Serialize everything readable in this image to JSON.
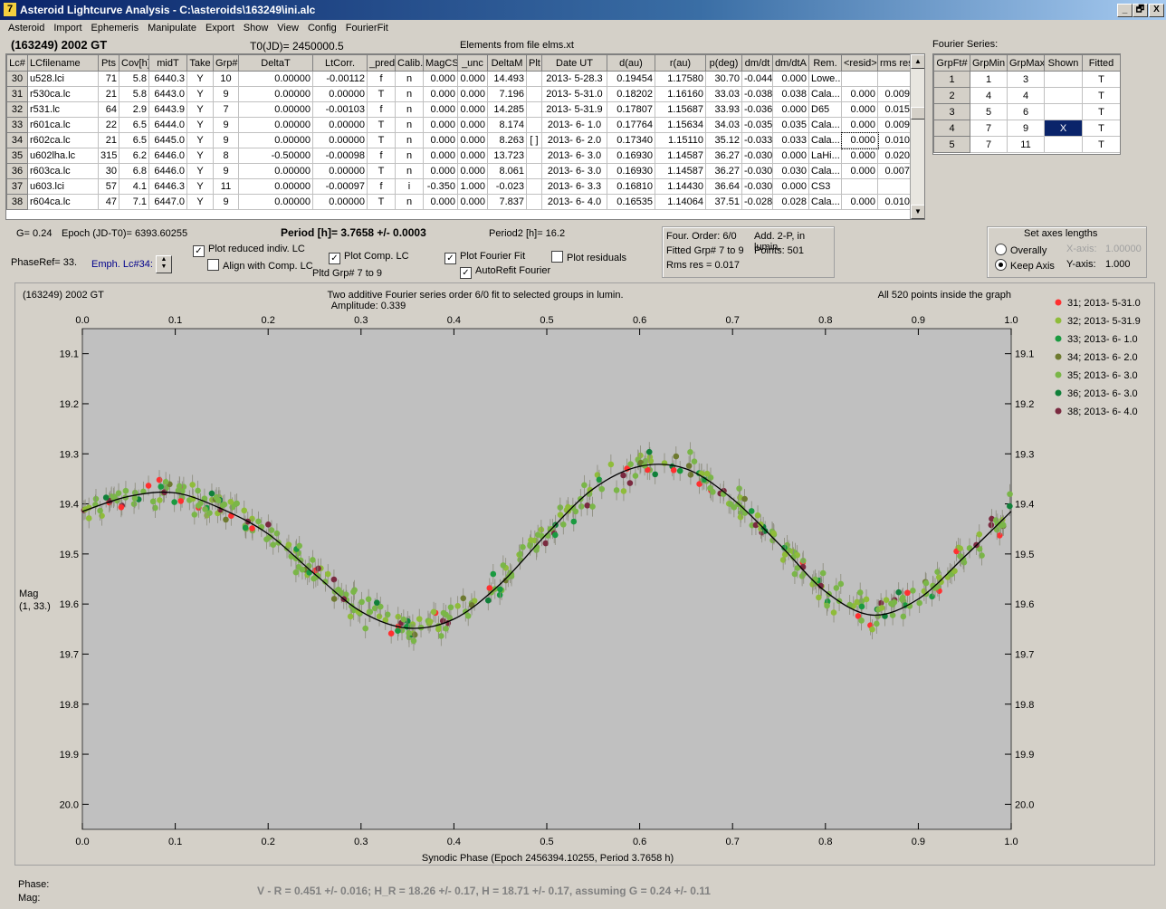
{
  "window": {
    "title": "Asteroid Lightcurve Analysis - C:\\asteroids\\163249\\ini.alc",
    "app_icon": "7",
    "controls": [
      "_",
      "🗗",
      "X"
    ]
  },
  "menu": [
    "Asteroid",
    "Import",
    "Ephemeris",
    "Manipulate",
    "Export",
    "Show",
    "View",
    "Config",
    "FourierFit"
  ],
  "header": {
    "asteroid": "(163249) 2002 GT",
    "t0": "T0(JD)= 2450000.5",
    "elements": "Elements from file elms.xt",
    "fourier_series_label": "Fourier Series:"
  },
  "lc_table": {
    "columns": [
      "Lc#",
      "LCfilename",
      "Pts",
      "Cov[h]",
      "midT",
      "Take",
      "Grp#",
      "DeltaT",
      "LtCorr.",
      "_pred.",
      "Calib.",
      "MagCS",
      "_unc",
      "DeltaM",
      "Plt",
      "Date UT",
      "d(au)",
      "r(au)",
      "p(deg)",
      "dm/dt",
      "dm/dtA",
      "Rem.",
      "<resid>",
      "rms res"
    ],
    "rows": [
      [
        "30",
        "u528.lci",
        "71",
        "5.8",
        "6440.3",
        "Y",
        "10",
        "0.00000",
        "-0.00112",
        "f",
        "n",
        "0.000",
        "0.000",
        "14.493",
        "",
        "2013- 5-28.3",
        "0.19454",
        "1.17580",
        "30.70",
        "-0.044",
        "0.000",
        "Lowe...",
        "",
        ""
      ],
      [
        "31",
        "r530ca.lc",
        "21",
        "5.8",
        "6443.0",
        "Y",
        "9",
        "0.00000",
        "0.00000",
        "T",
        "n",
        "0.000",
        "0.000",
        "7.196",
        "",
        "2013- 5-31.0",
        "0.18202",
        "1.16160",
        "33.03",
        "-0.038",
        "0.038",
        "Cala...",
        "0.000",
        "0.009"
      ],
      [
        "32",
        "r531.lc",
        "64",
        "2.9",
        "6443.9",
        "Y",
        "7",
        "0.00000",
        "-0.00103",
        "f",
        "n",
        "0.000",
        "0.000",
        "14.285",
        "",
        "2013- 5-31.9",
        "0.17807",
        "1.15687",
        "33.93",
        "-0.036",
        "0.000",
        "D65",
        "0.000",
        "0.015"
      ],
      [
        "33",
        "r601ca.lc",
        "22",
        "6.5",
        "6444.0",
        "Y",
        "9",
        "0.00000",
        "0.00000",
        "T",
        "n",
        "0.000",
        "0.000",
        "8.174",
        "",
        "2013- 6- 1.0",
        "0.17764",
        "1.15634",
        "34.03",
        "-0.035",
        "0.035",
        "Cala...",
        "0.000",
        "0.009"
      ],
      [
        "34",
        "r602ca.lc",
        "21",
        "6.5",
        "6445.0",
        "Y",
        "9",
        "0.00000",
        "0.00000",
        "T",
        "n",
        "0.000",
        "0.000",
        "8.263",
        "[ ]",
        "2013- 6- 2.0",
        "0.17340",
        "1.15110",
        "35.12",
        "-0.033",
        "0.033",
        "Cala...",
        "0.000",
        "0.010"
      ],
      [
        "35",
        "u602lha.lc",
        "315",
        "6.2",
        "6446.0",
        "Y",
        "8",
        "-0.50000",
        "-0.00098",
        "f",
        "n",
        "0.000",
        "0.000",
        "13.723",
        "",
        "2013- 6- 3.0",
        "0.16930",
        "1.14587",
        "36.27",
        "-0.030",
        "0.000",
        "LaHi...",
        "0.000",
        "0.020"
      ],
      [
        "36",
        "r603ca.lc",
        "30",
        "6.8",
        "6446.0",
        "Y",
        "9",
        "0.00000",
        "0.00000",
        "T",
        "n",
        "0.000",
        "0.000",
        "8.061",
        "",
        "2013- 6- 3.0",
        "0.16930",
        "1.14587",
        "36.27",
        "-0.030",
        "0.030",
        "Cala...",
        "0.000",
        "0.007"
      ],
      [
        "37",
        "u603.lci",
        "57",
        "4.1",
        "6446.3",
        "Y",
        "11",
        "0.00000",
        "-0.00097",
        "f",
        "i",
        "-0.350",
        "1.000",
        "-0.023",
        "",
        "2013- 6- 3.3",
        "0.16810",
        "1.14430",
        "36.64",
        "-0.030",
        "0.000",
        "CS3",
        "",
        ""
      ],
      [
        "38",
        "r604ca.lc",
        "47",
        "7.1",
        "6447.0",
        "Y",
        "9",
        "0.00000",
        "0.00000",
        "T",
        "n",
        "0.000",
        "0.000",
        "7.837",
        "",
        "2013- 6- 4.0",
        "0.16535",
        "1.14064",
        "37.51",
        "-0.028",
        "0.028",
        "Cala...",
        "0.000",
        "0.010"
      ]
    ]
  },
  "fourier_table": {
    "columns": [
      "GrpFt#",
      "GrpMin",
      "GrpMax",
      "Shown",
      "Fitted"
    ],
    "rows": [
      [
        "1",
        "1",
        "3",
        "",
        "T"
      ],
      [
        "2",
        "4",
        "4",
        "",
        "T"
      ],
      [
        "3",
        "5",
        "6",
        "",
        "T"
      ],
      [
        "4",
        "7",
        "9",
        "X",
        "T"
      ],
      [
        "5",
        "7",
        "11",
        "",
        "T"
      ]
    ]
  },
  "controls": {
    "g": "G= 0.24",
    "epoch": "Epoch (JD-T0)= 6393.60255",
    "period": "Period [h]= 3.7658 +/- 0.0003",
    "period2": "Period2 [h]= 16.2",
    "phaseref": "PhaseRef= 33.",
    "emph": "Emph. Lc#34:",
    "plot_reduced": "Plot reduced indiv. LC",
    "align_comp": "Align with Comp. LC",
    "plot_comp": "Plot Comp. LC",
    "plotted_grp": "Pltd Grp#  7   to   9",
    "plot_fourier": "Plot Fourier Fit",
    "autorefit": "AutoRefit Fourier",
    "plot_residuals": "Plot residuals",
    "checks": {
      "plot_reduced": true,
      "align_comp": false,
      "plot_comp": true,
      "plot_fourier": true,
      "autorefit": true,
      "plot_residuals": false
    },
    "four_order": "Four. Order:  6/0",
    "add2p": "Add. 2-P, in lumin.",
    "fitted_grp": "Fitted Grp# 7 to 9",
    "points": "Points: 501",
    "rms": "Rms res     = 0.017",
    "axes_title": "Set axes lengths",
    "overally": "Overally",
    "keep_axis": "Keep Axis",
    "xaxis_label": "X-axis:",
    "xaxis_val": "1.00000",
    "yaxis_label": "Y-axis:",
    "yaxis_val": "1.000"
  },
  "plot": {
    "left_title": "(163249) 2002 GT",
    "center_title": "Two additive Fourier series order 6/0 fit to selected groups in lumin.",
    "amplitude": "Amplitude: 0.339",
    "right_title": "All 520 points inside the graph",
    "ylabel1": "Mag",
    "ylabel2": "(1, 33.)",
    "xlabel": "Synodic Phase (Epoch 2456394.10255, Period 3.7658 h)",
    "legend": [
      {
        "label": "31; 2013- 5-31.0",
        "color": "#ff3030"
      },
      {
        "label": "32; 2013- 5-31.9",
        "color": "#8fbc3a"
      },
      {
        "label": "33; 2013- 6- 1.0",
        "color": "#1a9a40"
      },
      {
        "label": "34; 2013- 6- 2.0",
        "color": "#6e7a30"
      },
      {
        "label": "35; 2013- 6- 3.0",
        "color": "#7ab648"
      },
      {
        "label": "36; 2013- 6- 3.0",
        "color": "#10803a"
      },
      {
        "label": "38; 2013- 6- 4.0",
        "color": "#7a2a40"
      }
    ]
  },
  "chart_data": {
    "type": "scatter",
    "title": "Two additive Fourier series order 6/0 fit to selected groups in lumin.",
    "xlabel": "Synodic Phase (Epoch 2456394.10255, Period 3.7658 h)",
    "ylabel": "Mag",
    "xlim": [
      0.0,
      1.0
    ],
    "ylim": [
      20.05,
      19.05
    ],
    "y_inverted": true,
    "xticks": [
      0.0,
      0.1,
      0.2,
      0.3,
      0.4,
      0.5,
      0.6,
      0.7,
      0.8,
      0.9,
      1.0
    ],
    "yticks": [
      19.1,
      19.2,
      19.3,
      19.4,
      19.5,
      19.6,
      19.7,
      19.8,
      19.9,
      20.0
    ],
    "xtick_labels": [
      "0.0",
      "0.1",
      "0.2",
      "0.3",
      "0.4",
      "0.5",
      "0.6",
      "0.7",
      "0.8",
      "0.9",
      "1.0"
    ],
    "ytick_labels": [
      "19.1",
      "19.2",
      "19.3",
      "19.4",
      "19.5",
      "19.6",
      "19.7",
      "19.8",
      "19.9",
      "20.0"
    ],
    "fit_curve": {
      "x": [
        0.0,
        0.05,
        0.1,
        0.15,
        0.2,
        0.25,
        0.3,
        0.35,
        0.4,
        0.45,
        0.5,
        0.55,
        0.6,
        0.65,
        0.7,
        0.75,
        0.8,
        0.85,
        0.9,
        0.95,
        1.0
      ],
      "y": [
        19.415,
        19.385,
        19.378,
        19.41,
        19.46,
        19.54,
        19.615,
        19.648,
        19.63,
        19.56,
        19.46,
        19.37,
        19.325,
        19.33,
        19.39,
        19.48,
        19.575,
        19.622,
        19.59,
        19.505,
        19.415
      ]
    },
    "grid": false,
    "legend_position": "right"
  },
  "status": {
    "phase_label": "Phase:",
    "mag_label": "Mag:",
    "summary": "V - R = 0.451 +/- 0.016; H_R = 18.26 +/- 0.17, H = 18.71 +/- 0.17, assuming G = 0.24 +/- 0.11"
  }
}
